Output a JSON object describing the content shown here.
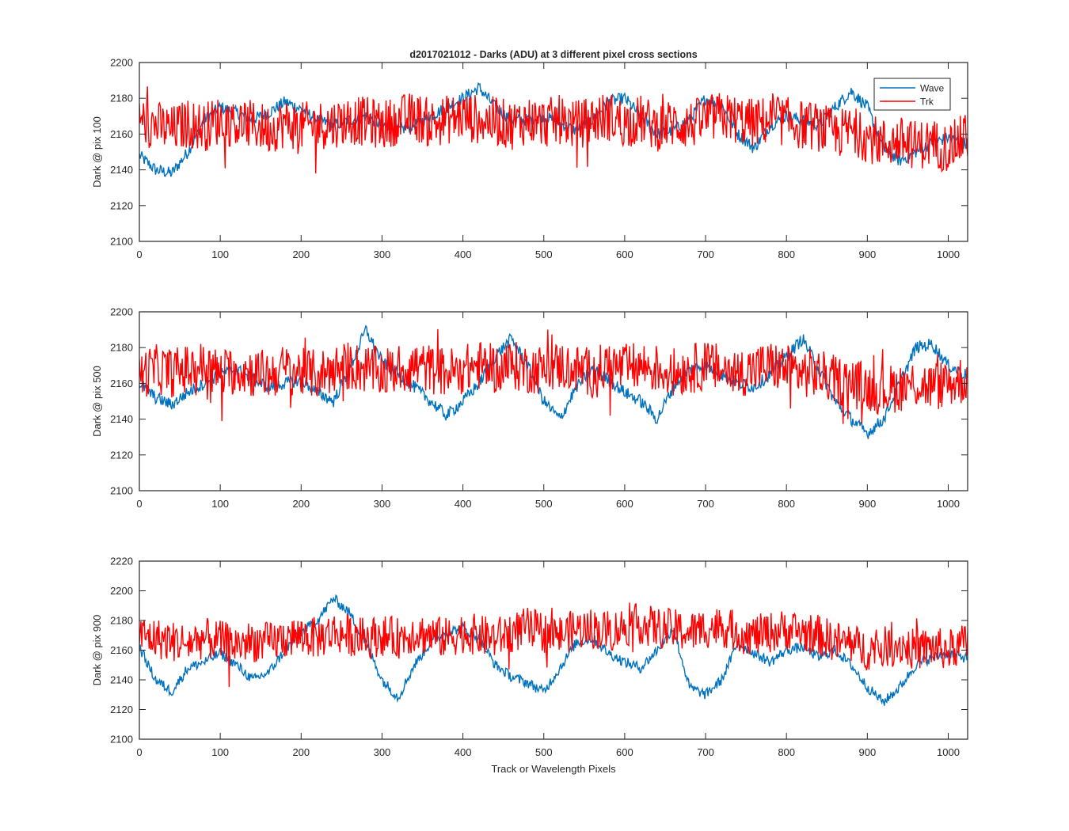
{
  "figure": {
    "title": "d2017021012 - Darks (ADU) at 3 different pixel cross sections",
    "xlabel": "Track or Wavelength Pixels"
  },
  "legend": {
    "items": [
      {
        "label": "Wave",
        "color": "#0072bd"
      },
      {
        "label": "Trk",
        "color": "#ff0000"
      }
    ],
    "placement": "top-right of first panel"
  },
  "chart_data": [
    {
      "type": "line",
      "ylabel": "Dark @ pix 100",
      "xlim": [
        0,
        1024
      ],
      "ylim": [
        2100,
        2200
      ],
      "xticks": [
        0,
        100,
        200,
        300,
        400,
        500,
        600,
        700,
        800,
        900,
        1000
      ],
      "yticks": [
        2100,
        2120,
        2140,
        2160,
        2180,
        2200
      ],
      "grid": false,
      "series": [
        {
          "name": "Wave",
          "color": "#0072bd",
          "x": [
            0,
            20,
            40,
            60,
            80,
            100,
            120,
            140,
            160,
            180,
            200,
            220,
            240,
            260,
            280,
            300,
            320,
            340,
            360,
            380,
            400,
            420,
            440,
            460,
            480,
            500,
            520,
            540,
            560,
            580,
            600,
            620,
            640,
            660,
            680,
            700,
            720,
            740,
            760,
            780,
            800,
            820,
            840,
            860,
            880,
            900,
            920,
            940,
            960,
            980,
            1000,
            1020
          ],
          "y": [
            2148,
            2140,
            2138,
            2150,
            2168,
            2175,
            2172,
            2168,
            2172,
            2178,
            2174,
            2168,
            2165,
            2168,
            2170,
            2165,
            2162,
            2165,
            2170,
            2175,
            2180,
            2186,
            2175,
            2168,
            2168,
            2170,
            2166,
            2162,
            2168,
            2178,
            2180,
            2170,
            2160,
            2162,
            2168,
            2180,
            2176,
            2160,
            2152,
            2165,
            2170,
            2168,
            2165,
            2175,
            2184,
            2175,
            2152,
            2145,
            2150,
            2155,
            2158,
            2155
          ]
        },
        {
          "name": "Trk",
          "color": "#ff0000",
          "x": [
            0,
            20,
            40,
            60,
            80,
            100,
            120,
            140,
            160,
            180,
            200,
            220,
            240,
            260,
            280,
            300,
            320,
            340,
            360,
            380,
            400,
            420,
            440,
            460,
            480,
            500,
            520,
            540,
            560,
            580,
            600,
            620,
            640,
            660,
            680,
            700,
            720,
            740,
            760,
            780,
            800,
            820,
            840,
            860,
            880,
            900,
            920,
            940,
            960,
            980,
            1000,
            1020
          ],
          "y": [
            2168,
            2165,
            2162,
            2166,
            2164,
            2168,
            2166,
            2165,
            2163,
            2166,
            2164,
            2165,
            2166,
            2168,
            2167,
            2165,
            2168,
            2170,
            2166,
            2168,
            2170,
            2168,
            2167,
            2165,
            2168,
            2166,
            2168,
            2165,
            2168,
            2170,
            2166,
            2168,
            2164,
            2166,
            2165,
            2168,
            2170,
            2168,
            2166,
            2168,
            2167,
            2165,
            2164,
            2160,
            2162,
            2158,
            2155,
            2156,
            2154,
            2155,
            2152,
            2158
          ],
          "noise": 14
        }
      ]
    },
    {
      "type": "line",
      "ylabel": "Dark @ pix 500",
      "xlim": [
        0,
        1024
      ],
      "ylim": [
        2100,
        2200
      ],
      "xticks": [
        0,
        100,
        200,
        300,
        400,
        500,
        600,
        700,
        800,
        900,
        1000
      ],
      "yticks": [
        2100,
        2120,
        2140,
        2160,
        2180,
        2200
      ],
      "grid": false,
      "series": [
        {
          "name": "Wave",
          "color": "#0072bd",
          "x": [
            0,
            20,
            40,
            60,
            80,
            100,
            120,
            140,
            160,
            180,
            200,
            220,
            240,
            260,
            280,
            300,
            320,
            340,
            360,
            380,
            400,
            420,
            440,
            460,
            480,
            500,
            520,
            540,
            560,
            580,
            600,
            620,
            640,
            660,
            680,
            700,
            720,
            740,
            760,
            780,
            800,
            820,
            840,
            860,
            880,
            900,
            920,
            940,
            960,
            980,
            1000,
            1020
          ],
          "y": [
            2160,
            2152,
            2148,
            2155,
            2160,
            2165,
            2168,
            2162,
            2158,
            2160,
            2162,
            2155,
            2150,
            2168,
            2190,
            2172,
            2165,
            2158,
            2150,
            2142,
            2150,
            2160,
            2175,
            2185,
            2170,
            2150,
            2140,
            2158,
            2168,
            2162,
            2155,
            2150,
            2140,
            2158,
            2168,
            2170,
            2165,
            2160,
            2158,
            2165,
            2175,
            2185,
            2168,
            2150,
            2140,
            2132,
            2140,
            2160,
            2180,
            2182,
            2170,
            2165
          ]
        },
        {
          "name": "Trk",
          "color": "#ff0000",
          "x": [
            0,
            20,
            40,
            60,
            80,
            100,
            120,
            140,
            160,
            180,
            200,
            220,
            240,
            260,
            280,
            300,
            320,
            340,
            360,
            380,
            400,
            420,
            440,
            460,
            480,
            500,
            520,
            540,
            560,
            580,
            600,
            620,
            640,
            660,
            680,
            700,
            720,
            740,
            760,
            780,
            800,
            820,
            840,
            860,
            880,
            900,
            920,
            940,
            960,
            980,
            1000,
            1020
          ],
          "y": [
            2165,
            2168,
            2166,
            2168,
            2170,
            2165,
            2168,
            2166,
            2165,
            2168,
            2166,
            2165,
            2168,
            2170,
            2168,
            2166,
            2168,
            2170,
            2168,
            2166,
            2168,
            2170,
            2168,
            2170,
            2168,
            2168,
            2170,
            2168,
            2166,
            2170,
            2168,
            2170,
            2168,
            2166,
            2168,
            2170,
            2168,
            2166,
            2168,
            2170,
            2168,
            2166,
            2165,
            2162,
            2160,
            2158,
            2156,
            2158,
            2160,
            2158,
            2160,
            2162
          ],
          "noise": 14
        }
      ]
    },
    {
      "type": "line",
      "ylabel": "Dark @ pix 900",
      "xlim": [
        0,
        1024
      ],
      "ylim": [
        2100,
        2220
      ],
      "xticks": [
        0,
        100,
        200,
        300,
        400,
        500,
        600,
        700,
        800,
        900,
        1000
      ],
      "yticks": [
        2100,
        2120,
        2140,
        2160,
        2180,
        2200,
        2220
      ],
      "grid": false,
      "series": [
        {
          "name": "Wave",
          "color": "#0072bd",
          "x": [
            0,
            20,
            40,
            60,
            80,
            100,
            120,
            140,
            160,
            180,
            200,
            220,
            240,
            260,
            280,
            300,
            320,
            340,
            360,
            380,
            400,
            420,
            440,
            460,
            480,
            500,
            520,
            540,
            560,
            580,
            600,
            620,
            640,
            660,
            680,
            700,
            720,
            740,
            760,
            780,
            800,
            820,
            840,
            860,
            880,
            900,
            920,
            940,
            960,
            980,
            1000,
            1020
          ],
          "y": [
            2162,
            2140,
            2132,
            2148,
            2152,
            2158,
            2150,
            2140,
            2145,
            2160,
            2172,
            2180,
            2195,
            2185,
            2165,
            2140,
            2128,
            2150,
            2165,
            2172,
            2175,
            2168,
            2150,
            2142,
            2138,
            2132,
            2148,
            2165,
            2168,
            2158,
            2152,
            2148,
            2160,
            2175,
            2135,
            2130,
            2140,
            2165,
            2158,
            2152,
            2160,
            2162,
            2155,
            2160,
            2150,
            2135,
            2125,
            2135,
            2150,
            2155,
            2158,
            2155
          ]
        },
        {
          "name": "Trk",
          "color": "#ff0000",
          "x": [
            0,
            20,
            40,
            60,
            80,
            100,
            120,
            140,
            160,
            180,
            200,
            220,
            240,
            260,
            280,
            300,
            320,
            340,
            360,
            380,
            400,
            420,
            440,
            460,
            480,
            500,
            520,
            540,
            560,
            580,
            600,
            620,
            640,
            660,
            680,
            700,
            720,
            740,
            760,
            780,
            800,
            820,
            840,
            860,
            880,
            900,
            920,
            940,
            960,
            980,
            1000,
            1020
          ],
          "y": [
            2170,
            2168,
            2166,
            2165,
            2168,
            2166,
            2164,
            2166,
            2165,
            2168,
            2170,
            2168,
            2172,
            2170,
            2168,
            2170,
            2168,
            2172,
            2170,
            2168,
            2172,
            2170,
            2168,
            2172,
            2175,
            2172,
            2170,
            2174,
            2175,
            2172,
            2176,
            2178,
            2175,
            2174,
            2172,
            2175,
            2176,
            2172,
            2170,
            2172,
            2174,
            2172,
            2170,
            2166,
            2164,
            2160,
            2162,
            2164,
            2160,
            2162,
            2160,
            2164
          ],
          "noise": 14
        }
      ]
    }
  ]
}
